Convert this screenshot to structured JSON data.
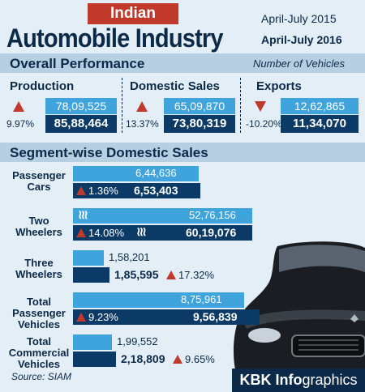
{
  "header": {
    "title_top": "Indian",
    "title_main": "Automobile Industry"
  },
  "legend": [
    {
      "label": "April-July 2015",
      "color": "#3fa3dc"
    },
    {
      "label": "April-July 2016",
      "color": "#0b3a66"
    }
  ],
  "overall": {
    "section_title": "Overall Performance",
    "note": "Number of Vehicles",
    "items": [
      {
        "label": "Production",
        "v2015": "78,09,525",
        "v2016": "85,88,464",
        "change": "9.97%",
        "direction": "up"
      },
      {
        "label": "Domestic Sales",
        "v2015": "65,09,870",
        "v2016": "73,80,319",
        "change": "13.37%",
        "direction": "up"
      },
      {
        "label": "Exports",
        "v2015": "12,62,865",
        "v2016": "11,34,070",
        "change": "-10.20%",
        "direction": "down"
      }
    ]
  },
  "segment": {
    "section_title": "Segment-wise Domestic Sales"
  },
  "chart_data": {
    "type": "bar",
    "title": "Segment-wise Domestic Sales",
    "categories": [
      "Passenger Cars",
      "Two Wheelers",
      "Three Wheelers",
      "Total Passenger Vehicles",
      "Total Commercial Vehicles"
    ],
    "series": [
      {
        "name": "April-July 2015",
        "values": [
          644636,
          5276156,
          158201,
          875961,
          199552
        ],
        "labels": [
          "6,44,636",
          "52,76,156",
          "1,58,201",
          "8,75,961",
          "1,99,552"
        ]
      },
      {
        "name": "April-July 2016",
        "values": [
          653403,
          6019076,
          185595,
          956839,
          218809
        ],
        "labels": [
          "6,53,403",
          "60,19,076",
          "1,85,595",
          "9,56,839",
          "2,18,809"
        ]
      }
    ],
    "growth": [
      "1.36%",
      "14.08%",
      "17.32%",
      "9.23%",
      "9.65%"
    ],
    "axis_break_category": "Two Wheelers",
    "legend_position": "top-right"
  },
  "footer": {
    "source": "Source: SIAM",
    "credit_bold": "KBK Info",
    "credit_rest": "graphics"
  }
}
